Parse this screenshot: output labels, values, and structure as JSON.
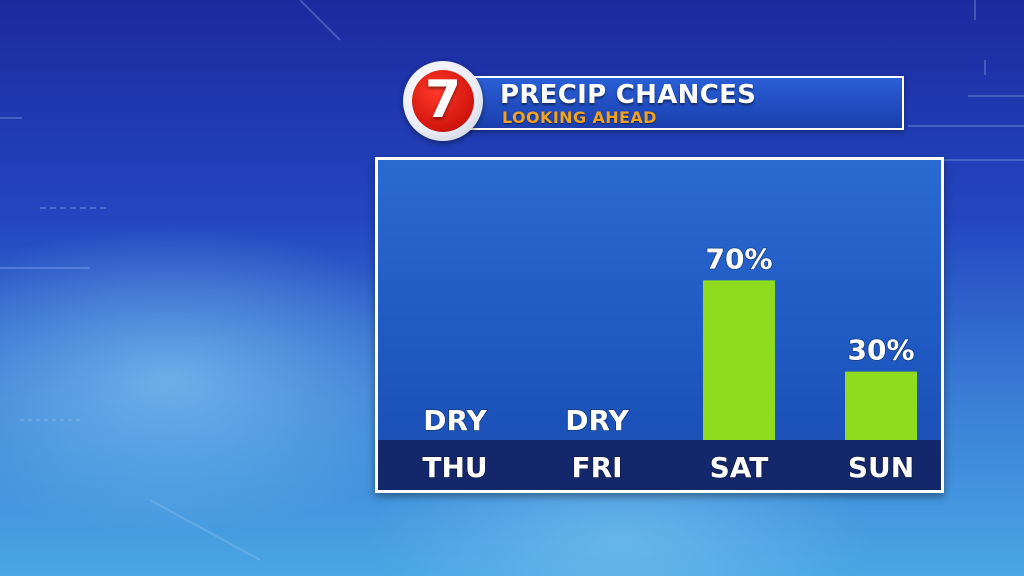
{
  "header": {
    "logo_text": "7",
    "title": "PRECIP CHANCES",
    "subtitle": "LOOKING AHEAD"
  },
  "chart_data": {
    "type": "bar",
    "categories": [
      "THU",
      "FRI",
      "SAT",
      "SUN"
    ],
    "values": [
      0,
      0,
      70,
      30
    ],
    "labels": [
      "DRY",
      "DRY",
      "70%",
      "30%"
    ],
    "ylim": [
      0,
      100
    ],
    "bar_color": "#8fdc1e"
  },
  "colors": {
    "title_text": "#ffffff",
    "subtitle_text": "#f2a21d",
    "logo_red": "#d4170f",
    "panel_blue": "#1f59c2",
    "day_band": "#14276b"
  }
}
